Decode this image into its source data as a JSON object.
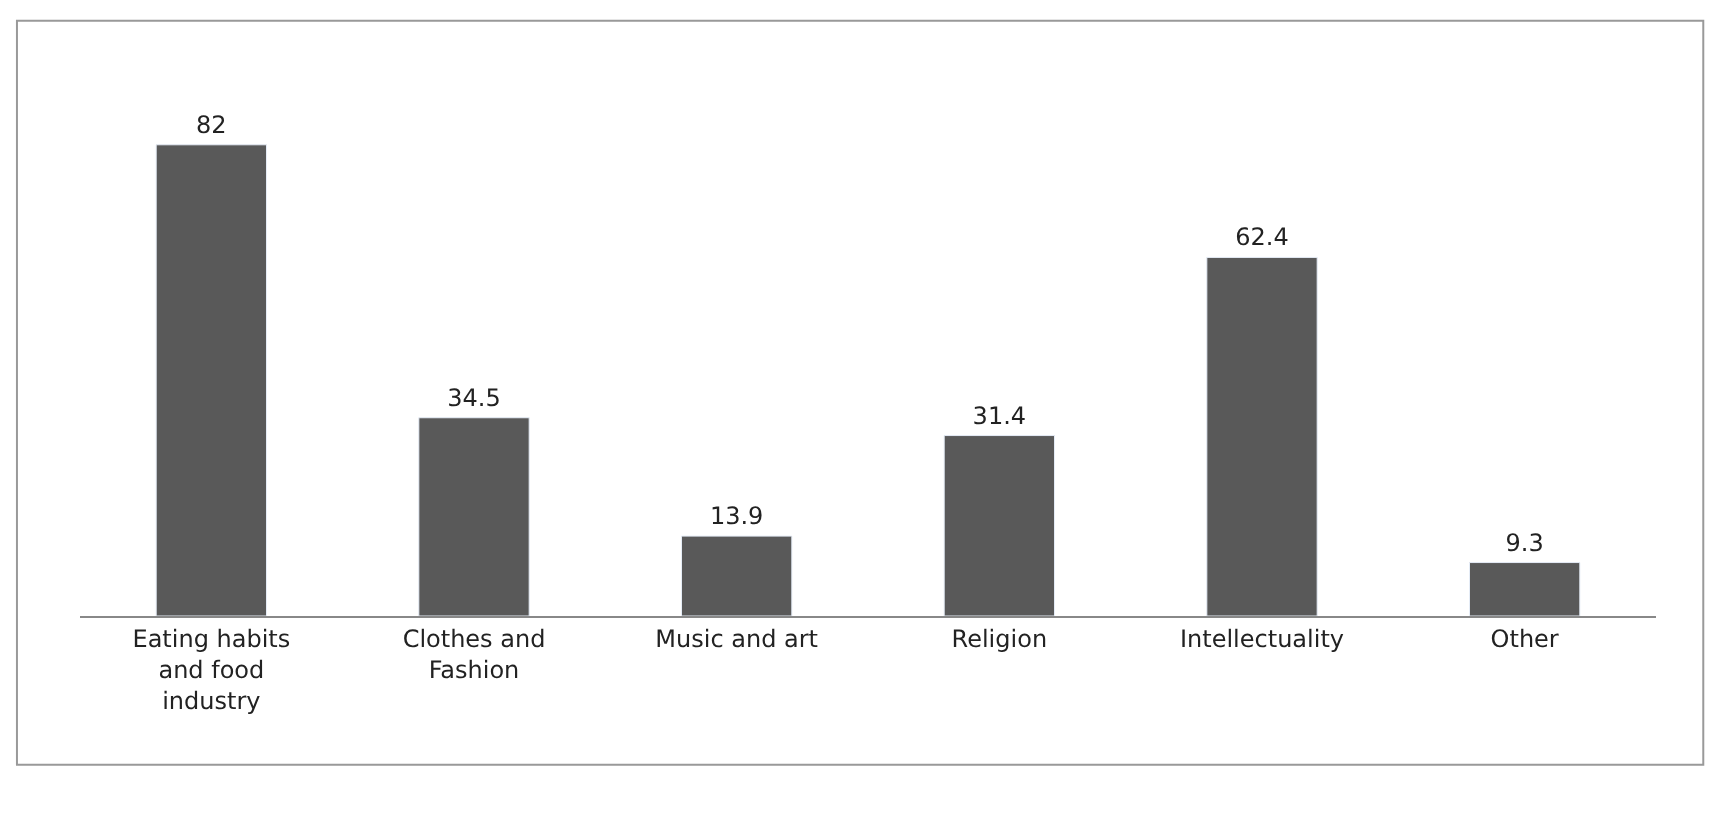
{
  "chart_data": {
    "type": "bar",
    "categories": [
      "Eating habits and food industry",
      "Clothes and Fashion",
      "Music and art",
      "Religion",
      "Intellectuality",
      "Other"
    ],
    "values": [
      82,
      34.5,
      13.9,
      31.4,
      62.4,
      9.3
    ],
    "color": "#595959",
    "data_labels": true
  }
}
